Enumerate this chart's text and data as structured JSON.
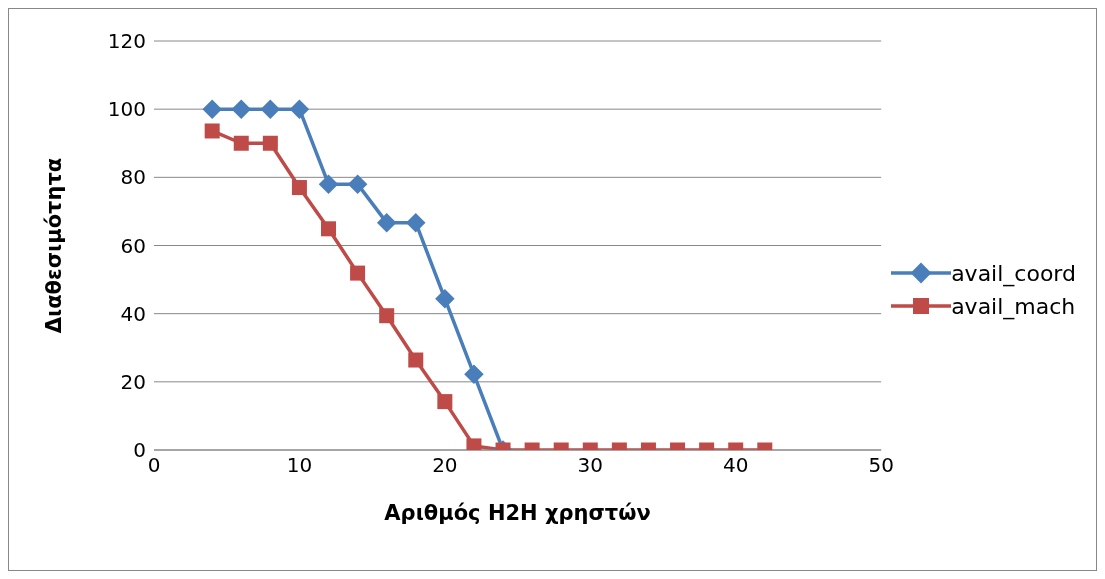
{
  "chart_data": {
    "type": "line",
    "xlabel": "Αριθμός H2H χρηστών",
    "ylabel": "Διαθεσιμότητα",
    "xlim": [
      0,
      50
    ],
    "xticks": [
      0,
      10,
      20,
      30,
      40,
      50
    ],
    "ylim": [
      0,
      120
    ],
    "yticks": [
      0,
      20,
      40,
      60,
      80,
      100,
      120
    ],
    "grid": "y",
    "legend": "right",
    "line_style": "solid",
    "series": [
      {
        "name": "avail_coord",
        "color": "#4a7ebb",
        "marker": "diamond",
        "x": [
          4,
          6,
          8,
          10,
          12,
          14,
          16,
          18,
          20,
          22,
          24
        ],
        "values": [
          100,
          100,
          100,
          100,
          78,
          78,
          66.7,
          66.7,
          44.4,
          22.2,
          0
        ]
      },
      {
        "name": "avail_mach",
        "color": "#be4b48",
        "marker": "square",
        "x": [
          4,
          6,
          8,
          10,
          12,
          14,
          16,
          18,
          20,
          22,
          24,
          26,
          28,
          30,
          32,
          34,
          36,
          38,
          40,
          42
        ],
        "values": [
          93.6,
          90,
          90,
          77,
          64.9,
          51.9,
          39.4,
          26.4,
          14.2,
          1.2,
          0,
          0,
          0,
          0,
          0,
          0,
          0,
          0,
          0,
          0
        ]
      }
    ]
  }
}
